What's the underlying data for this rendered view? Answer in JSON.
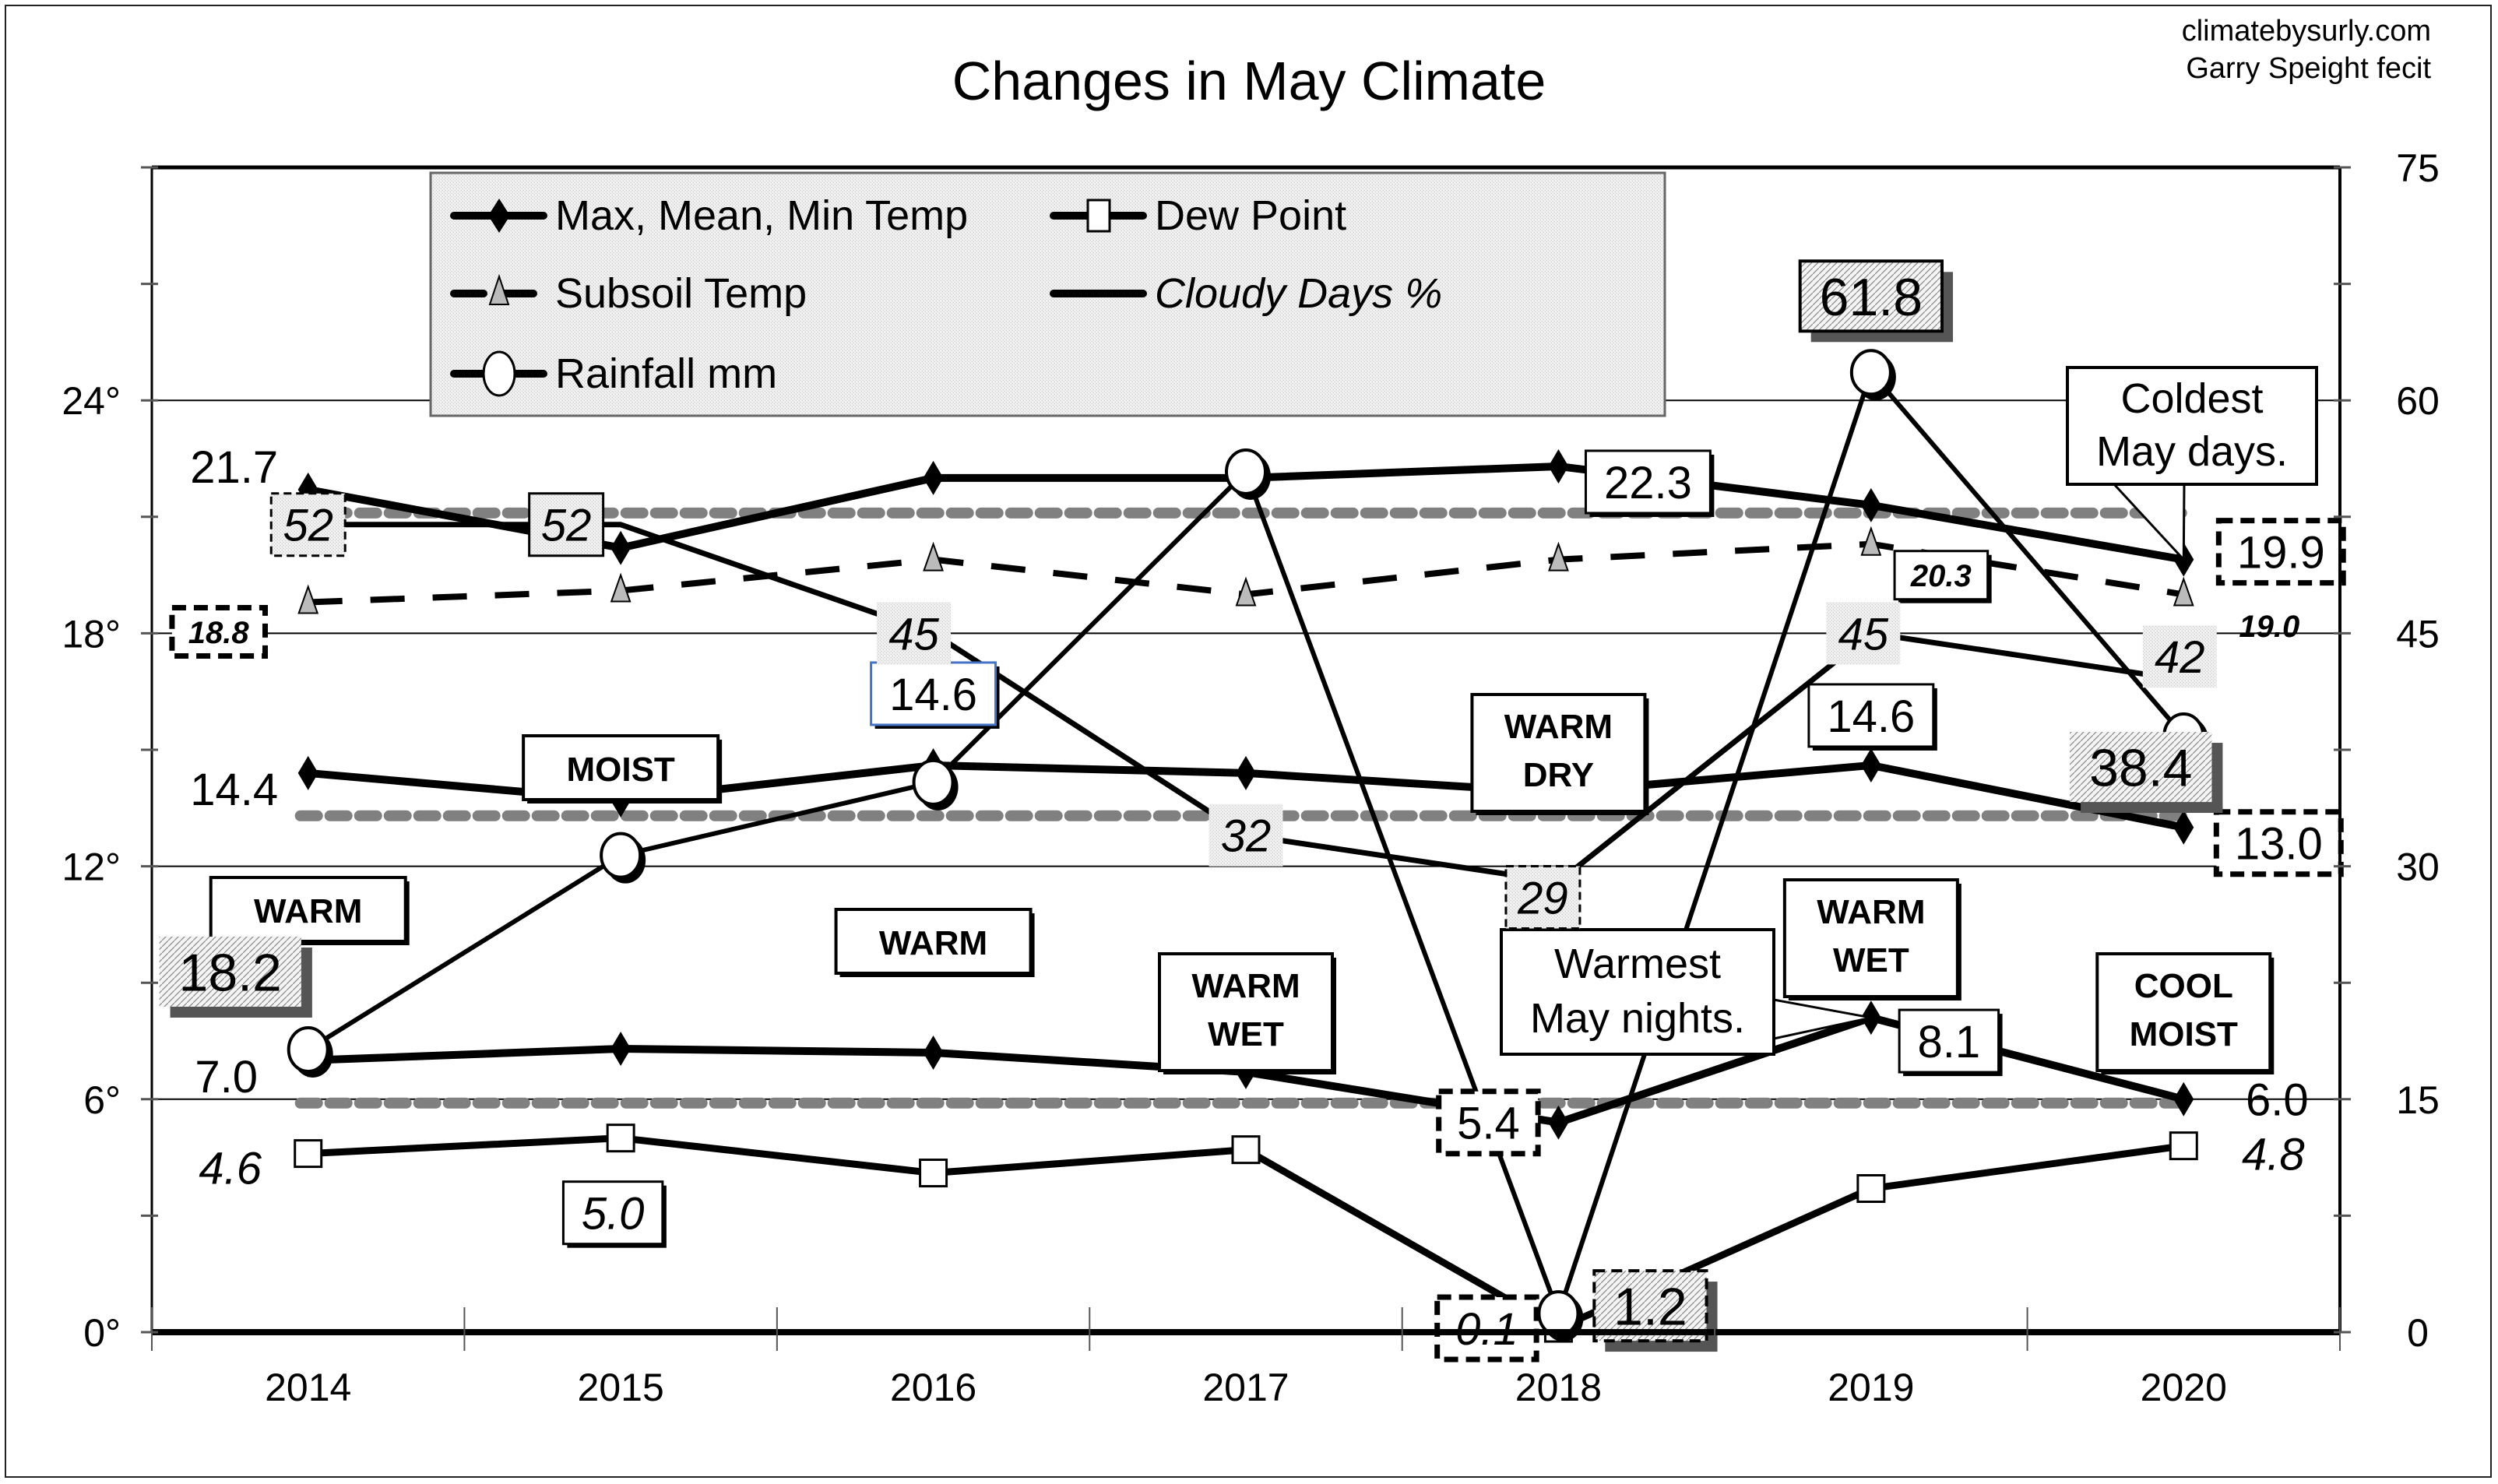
{
  "credit": {
    "line1": "climatebysurly.com",
    "line2": "Garry Speight fecit"
  },
  "chart_data": {
    "type": "line",
    "title": "Changes in May Climate",
    "categories": [
      "2014",
      "2015",
      "2016",
      "2017",
      "2018",
      "2019",
      "2020"
    ],
    "left_axis": {
      "ticks": [
        "0°",
        "6°",
        "12°",
        "18°",
        "24°"
      ],
      "tick_values": [
        0,
        6,
        12,
        18,
        24
      ],
      "range": [
        0,
        30
      ]
    },
    "right_axis": {
      "ticks": [
        "0",
        "15",
        "30",
        "45",
        "60",
        "75"
      ],
      "tick_values": [
        0,
        15,
        30,
        45,
        60,
        75
      ],
      "range": [
        0,
        75
      ]
    },
    "grid": "horizontal",
    "legend": {
      "placement": "top-left",
      "items": [
        {
          "label": "Max, Mean, Min Temp",
          "marker": "diamond"
        },
        {
          "label": "Dew Point",
          "marker": "square"
        },
        {
          "label": "Subsoil Temp",
          "marker": "triangle"
        },
        {
          "label": "Cloudy Days %",
          "marker": "none"
        },
        {
          "label": "Rainfall mm",
          "marker": "circle"
        }
      ]
    },
    "series": [
      {
        "name": "Max Temp",
        "axis": "left",
        "values": [
          21.7,
          20.2,
          22.0,
          22.0,
          22.3,
          21.3,
          19.9
        ]
      },
      {
        "name": "Mean Temp",
        "axis": "left",
        "values": [
          14.4,
          13.7,
          14.6,
          14.4,
          13.9,
          14.6,
          13.0
        ]
      },
      {
        "name": "Min Temp",
        "axis": "left",
        "values": [
          7.0,
          7.3,
          7.2,
          6.7,
          5.4,
          8.1,
          6.0
        ]
      },
      {
        "name": "Subsoil Temp",
        "axis": "left",
        "values": [
          18.8,
          19.1,
          19.9,
          19.0,
          19.9,
          20.3,
          19.0
        ]
      },
      {
        "name": "Dew Point",
        "axis": "left",
        "values": [
          4.6,
          5.0,
          4.1,
          4.7,
          0.1,
          3.7,
          4.8
        ]
      },
      {
        "name": "Cloudy Days %",
        "axis": "right",
        "values": [
          52,
          52,
          45,
          32,
          29,
          45,
          42
        ]
      },
      {
        "name": "Rainfall mm",
        "axis": "right",
        "values": [
          18.2,
          30.7,
          35.4,
          55.4,
          1.2,
          61.8,
          38.4
        ]
      }
    ],
    "averages": [
      {
        "name": "Max Temp average",
        "axis": "left",
        "value": 21.1
      },
      {
        "name": "Mean Temp average",
        "axis": "left",
        "value": 13.3
      },
      {
        "name": "Min Temp average",
        "axis": "left",
        "value": 5.9
      }
    ],
    "data_labels": [
      {
        "text": "21.7",
        "series": "Max Temp",
        "year": "2014",
        "style": "plain"
      },
      {
        "text": "22.3",
        "series": "Max Temp",
        "year": "2018",
        "style": "box"
      },
      {
        "text": "19.9",
        "series": "Max Temp",
        "year": "2020",
        "style": "dashed"
      },
      {
        "text": "14.4",
        "series": "Mean Temp",
        "year": "2014",
        "style": "plain"
      },
      {
        "text": "14.6",
        "series": "Mean Temp",
        "year": "2016",
        "style": "bluebox"
      },
      {
        "text": "14.6",
        "series": "Mean Temp",
        "year": "2019",
        "style": "box"
      },
      {
        "text": "13.0",
        "series": "Mean Temp",
        "year": "2020",
        "style": "dashed"
      },
      {
        "text": "7.0",
        "series": "Min Temp",
        "year": "2014",
        "style": "plain"
      },
      {
        "text": "5.4",
        "series": "Min Temp",
        "year": "2018",
        "style": "dashed"
      },
      {
        "text": "8.1",
        "series": "Min Temp",
        "year": "2019",
        "style": "box"
      },
      {
        "text": "6.0",
        "series": "Min Temp",
        "year": "2020",
        "style": "plain"
      },
      {
        "text": "18.8",
        "series": "Subsoil Temp",
        "year": "2014",
        "style": "dashed-bold-italic"
      },
      {
        "text": "20.3",
        "series": "Subsoil Temp",
        "year": "2019",
        "style": "box-bold-italic"
      },
      {
        "text": "19.0",
        "series": "Subsoil Temp",
        "year": "2020",
        "style": "bold-italic"
      },
      {
        "text": "4.6",
        "series": "Dew Point",
        "year": "2014",
        "style": "italic"
      },
      {
        "text": "5.0",
        "series": "Dew Point",
        "year": "2015",
        "style": "box-italic"
      },
      {
        "text": "0.1",
        "series": "Dew Point",
        "year": "2018",
        "style": "dashed-italic"
      },
      {
        "text": "4.8",
        "series": "Dew Point",
        "year": "2020",
        "style": "italic"
      },
      {
        "text": "52",
        "series": "Cloudy Days %",
        "year": "2014",
        "style": "cloud-dashed"
      },
      {
        "text": "52",
        "series": "Cloudy Days %",
        "year": "2015",
        "style": "cloud-box"
      },
      {
        "text": "45",
        "series": "Cloudy Days %",
        "year": "2016",
        "style": "cloud"
      },
      {
        "text": "32",
        "series": "Cloudy Days %",
        "year": "2017",
        "style": "cloud"
      },
      {
        "text": "29",
        "series": "Cloudy Days %",
        "year": "2018",
        "style": "cloud-dashed"
      },
      {
        "text": "45",
        "series": "Cloudy Days %",
        "year": "2019",
        "style": "cloud"
      },
      {
        "text": "42",
        "series": "Cloudy Days %",
        "year": "2020",
        "style": "cloud"
      },
      {
        "text": "18.2",
        "series": "Rainfall mm",
        "year": "2014",
        "style": "rain"
      },
      {
        "text": "61.8",
        "series": "Rainfall mm",
        "year": "2019",
        "style": "rain-box"
      },
      {
        "text": "1.2",
        "series": "Rainfall mm",
        "year": "2018",
        "style": "rain-dashed"
      },
      {
        "text": "38.4",
        "series": "Rainfall mm",
        "year": "2020",
        "style": "rain"
      }
    ],
    "year_labels": [
      {
        "year": "2014",
        "lines": [
          "WARM"
        ]
      },
      {
        "year": "2015",
        "lines": [
          "MOIST"
        ]
      },
      {
        "year": "2016",
        "lines": [
          "WARM"
        ]
      },
      {
        "year": "2017",
        "lines": [
          "WARM",
          "WET"
        ]
      },
      {
        "year": "2018",
        "lines": [
          "WARM",
          "DRY"
        ]
      },
      {
        "year": "2019",
        "lines": [
          "WARM",
          "WET"
        ]
      },
      {
        "year": "2020",
        "lines": [
          "COOL",
          "MOIST"
        ]
      }
    ],
    "annotations": [
      {
        "lines": [
          "Coldest",
          "May days."
        ],
        "points_to": "Max Temp 2020"
      },
      {
        "lines": [
          "Warmest",
          "May nights."
        ],
        "points_to": "Min Temp 2019"
      }
    ]
  }
}
